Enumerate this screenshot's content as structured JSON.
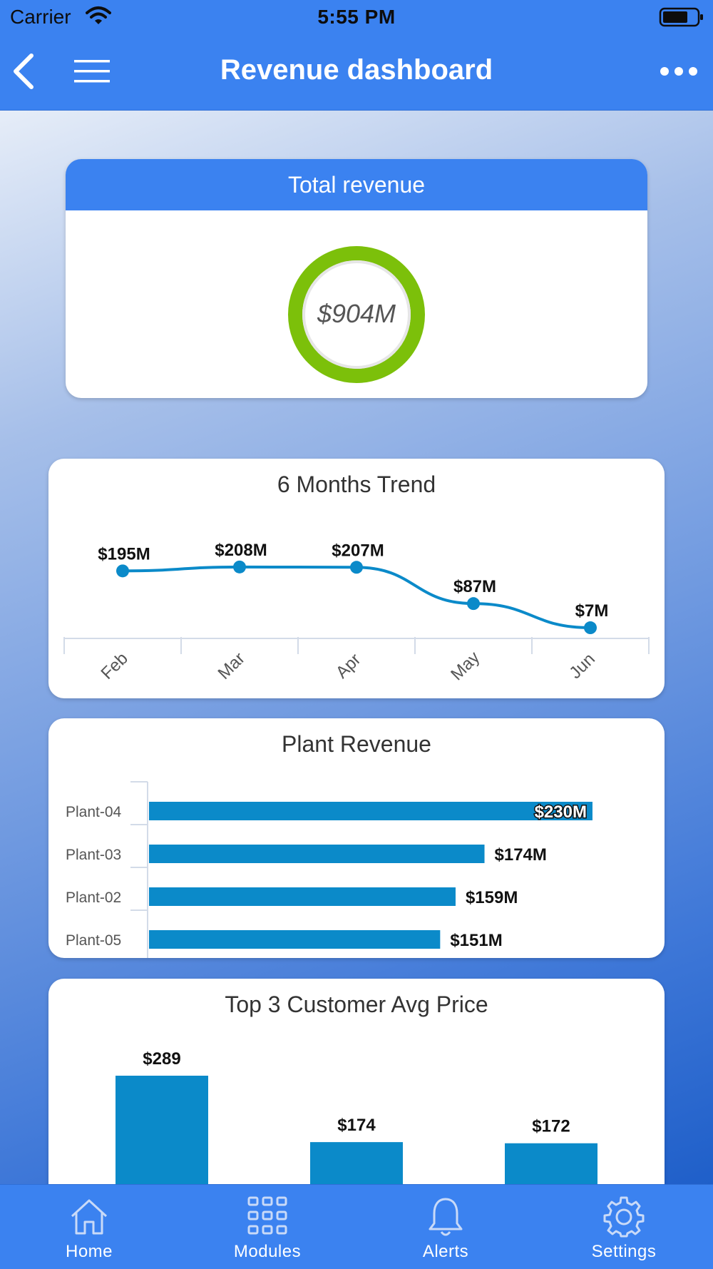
{
  "status_bar": {
    "carrier": "Carrier",
    "time": "5:55 PM",
    "icons": [
      "wifi-icon",
      "battery-icon"
    ]
  },
  "header": {
    "title": "Revenue dashboard",
    "icons": [
      "back-arrow-icon",
      "hamburger-menu-icon",
      "more-dots-icon"
    ]
  },
  "total_revenue": {
    "title": "Total revenue",
    "value": "$904M",
    "ring_color": "#7cc00a"
  },
  "tab_bar": {
    "tabs": [
      {
        "label": "Home",
        "icon": "home-icon"
      },
      {
        "label": "Modules",
        "icon": "grid-icon"
      },
      {
        "label": "Alerts",
        "icon": "bell-icon"
      },
      {
        "label": "Settings",
        "icon": "gear-icon"
      }
    ]
  },
  "colors": {
    "header_blue": "#3b82f0",
    "bar_blue": "#0b8ac9",
    "line_blue": "#0b8ac9"
  },
  "chart_data": [
    {
      "type": "line",
      "title": "6 Months Trend",
      "categories": [
        "Feb",
        "Mar",
        "Apr",
        "May",
        "Jun"
      ],
      "values": [
        195,
        208,
        207,
        87,
        7
      ],
      "data_labels": [
        "$195M",
        "$208M",
        "$207M",
        "$87M",
        "$7M"
      ],
      "ylim": [
        0,
        210
      ],
      "grid": false
    },
    {
      "type": "bar",
      "orientation": "horizontal",
      "title": "Plant Revenue",
      "categories": [
        "Plant-04",
        "Plant-03",
        "Plant-02",
        "Plant-05"
      ],
      "values": [
        230,
        174,
        159,
        151
      ],
      "data_labels": [
        "$230M",
        "$174M",
        "$159M",
        "$151M"
      ],
      "xlim": [
        0,
        240
      ],
      "grid": false
    },
    {
      "type": "bar",
      "title": "Top 3 Customer Avg Price",
      "values": [
        289,
        174,
        172
      ],
      "data_labels": [
        "$289",
        "$174",
        "$172"
      ],
      "grid": false
    }
  ]
}
